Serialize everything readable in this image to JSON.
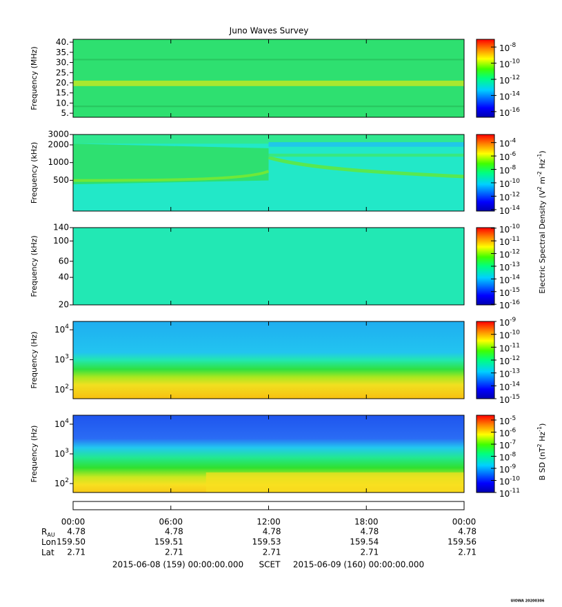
{
  "chart_data": {
    "type": "spectrogram",
    "title": "Juno Waves Survey",
    "xlim": [
      0,
      24
    ],
    "xticks": [
      {
        "value": 0,
        "label": "00:00"
      },
      {
        "value": 6,
        "label": "06:00"
      },
      {
        "value": 12,
        "label": "12:00"
      },
      {
        "value": 18,
        "label": "18:00"
      },
      {
        "value": 24,
        "label": "00:00"
      }
    ],
    "panels": [
      {
        "ylabel": "Frequency (MHz)",
        "ylog": false,
        "ylim": [
          3,
          41.4
        ],
        "yticks": [
          {
            "value": 40,
            "label": "40."
          },
          {
            "value": 35,
            "label": "35."
          },
          {
            "value": 30,
            "label": "30."
          },
          {
            "value": 25,
            "label": "25."
          },
          {
            "value": 20,
            "label": "20."
          },
          {
            "value": 15,
            "label": "15."
          },
          {
            "value": 10,
            "label": "10."
          },
          {
            "value": 5,
            "label": "5."
          }
        ],
        "clim": [
          2e-17,
          9e-08
        ],
        "cticks": [
          {
            "value": 1e-08,
            "label": "10",
            "sup": "-8"
          },
          {
            "value": 1e-10,
            "label": "10",
            "sup": "-10"
          },
          {
            "value": 1e-12,
            "label": "10",
            "sup": "-12"
          },
          {
            "value": 1e-14,
            "label": "10",
            "sup": "-14"
          },
          {
            "value": 1e-16,
            "label": "10",
            "sup": "-16"
          }
        ]
      },
      {
        "ylabel": "Frequency (kHz)",
        "ylog": true,
        "ylim": [
          150,
          3000
        ],
        "yticks": [
          500,
          1000,
          2000,
          3000
        ],
        "clim": [
          6e-15,
          0.0016
        ],
        "cticks": [
          {
            "value": 0.0001,
            "label": "10",
            "sup": "-4"
          },
          {
            "value": 1e-06,
            "label": "10",
            "sup": "-6"
          },
          {
            "value": 1e-08,
            "label": "10",
            "sup": "-8"
          },
          {
            "value": 1e-10,
            "label": "10",
            "sup": "-10"
          },
          {
            "value": 1e-12,
            "label": "10",
            "sup": "-12"
          },
          {
            "value": 1e-14,
            "label": "10",
            "sup": "-14"
          }
        ]
      },
      {
        "ylabel": "Frequency (kHz)",
        "ylog": true,
        "ylim": [
          20,
          140
        ],
        "yticks": [
          20,
          40,
          60,
          100,
          140
        ],
        "clim": [
          9e-17,
          1.1e-10
        ],
        "cticks": [
          {
            "value": 1e-10,
            "label": "10",
            "sup": "-10"
          },
          {
            "value": 1e-11,
            "label": "10",
            "sup": "-11"
          },
          {
            "value": 1e-12,
            "label": "10",
            "sup": "-12"
          },
          {
            "value": 1e-13,
            "label": "10",
            "sup": "-13"
          },
          {
            "value": 1e-14,
            "label": "10",
            "sup": "-14"
          },
          {
            "value": 1e-15,
            "label": "10",
            "sup": "-15"
          },
          {
            "value": 1e-16,
            "label": "10",
            "sup": "-16"
          }
        ]
      },
      {
        "ylabel": "Frequency (Hz)",
        "ylog": true,
        "ylim": [
          50,
          19000
        ],
        "yticks": [
          {
            "value": 100,
            "label": "10",
            "sup": "2"
          },
          {
            "value": 1000,
            "label": "10",
            "sup": "3"
          },
          {
            "value": 10000,
            "label": "10",
            "sup": "4"
          }
        ],
        "clim": [
          1e-15,
          1e-09
        ],
        "cticks": [
          {
            "value": 1e-09,
            "label": "10",
            "sup": "-9"
          },
          {
            "value": 1e-10,
            "label": "10",
            "sup": "-10"
          },
          {
            "value": 1e-11,
            "label": "10",
            "sup": "-11"
          },
          {
            "value": 1e-12,
            "label": "10",
            "sup": "-12"
          },
          {
            "value": 1e-13,
            "label": "10",
            "sup": "-13"
          },
          {
            "value": 1e-14,
            "label": "10",
            "sup": "-14"
          },
          {
            "value": 1e-15,
            "label": "10",
            "sup": "-15"
          }
        ]
      },
      {
        "ylabel": "Frequency (Hz)",
        "ylog": true,
        "ylim": [
          50,
          20000
        ],
        "yticks": [
          {
            "value": 100,
            "label": "10",
            "sup": "2"
          },
          {
            "value": 1000,
            "label": "10",
            "sup": "3"
          },
          {
            "value": 10000,
            "label": "10",
            "sup": "4"
          }
        ],
        "clim": [
          1e-11,
          2.5e-05
        ],
        "cticks": [
          {
            "value": 1e-05,
            "label": "10",
            "sup": "-5"
          },
          {
            "value": 1e-06,
            "label": "10",
            "sup": "-6"
          },
          {
            "value": 1e-07,
            "label": "10",
            "sup": "-7"
          },
          {
            "value": 1e-08,
            "label": "10",
            "sup": "-8"
          },
          {
            "value": 1e-09,
            "label": "10",
            "sup": "-9"
          },
          {
            "value": 1e-10,
            "label": "10",
            "sup": "-10"
          },
          {
            "value": 1e-11,
            "label": "10",
            "sup": "-11"
          }
        ]
      }
    ],
    "colorbar_labels": [
      [
        "Electric Spectral Density (V",
        "2",
        " m",
        "-2",
        " Hz",
        "-1",
        ")"
      ],
      [
        "B SD (nT",
        "2",
        " Hz",
        "-1",
        ")"
      ]
    ],
    "ephemeris": {
      "labels": [
        [
          "R",
          "AU"
        ],
        [
          "Lon"
        ],
        [
          "Lat"
        ]
      ],
      "rows": [
        [
          "4.78",
          "4.78",
          "4.78",
          "4.78",
          "4.78"
        ],
        [
          "159.50",
          "159.51",
          "159.53",
          "159.54",
          "159.56"
        ],
        [
          "2.71",
          "2.71",
          "2.71",
          "2.71",
          "2.71"
        ]
      ]
    },
    "start": "2015-06-08 (159) 00:00:00.000",
    "timescale": "SCET",
    "end": "2015-06-09 (160) 00:00:00.000",
    "footer": "UIOWA 20200306"
  }
}
